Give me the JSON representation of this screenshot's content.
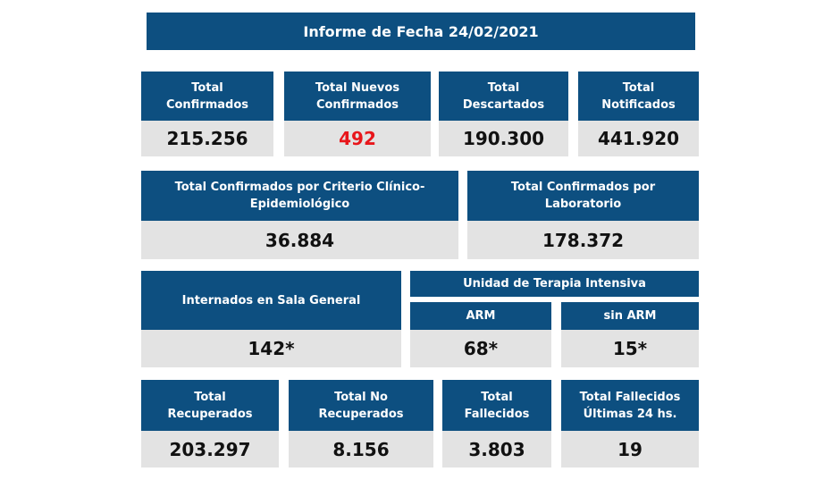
{
  "title": "Informe de Fecha 24/02/2021",
  "colors": {
    "header": "#0d4f80",
    "value_bg": "#e3e3e3",
    "highlight": "#e8161b"
  },
  "row1": [
    {
      "label": "Total Confirmados",
      "value": "215.256"
    },
    {
      "label": "Total Nuevos Confirmados",
      "value": "492"
    },
    {
      "label": "Total Descartados",
      "value": "190.300"
    },
    {
      "label": "Total Notificados",
      "value": "441.920"
    }
  ],
  "row2": [
    {
      "label": "Total Confirmados por Criterio Clínico-Epidemiológico",
      "value": "36.884"
    },
    {
      "label": "Total Confirmados por Laboratorio",
      "value": "178.372"
    }
  ],
  "row3": {
    "sala": {
      "label": "Internados en Sala General",
      "value": "142*"
    },
    "uti_label": "Unidad de Terapia Intensiva",
    "arm": {
      "label": "ARM",
      "value": "68*"
    },
    "sin_arm": {
      "label": "sin ARM",
      "value": "15*"
    }
  },
  "row4": [
    {
      "label": "Total Recuperados",
      "value": "203.297"
    },
    {
      "label": "Total No Recuperados",
      "value": "8.156"
    },
    {
      "label": "Total Fallecidos",
      "value": "3.803"
    },
    {
      "label": "Total Fallecidos Últimas 24 hs.",
      "value": "19"
    }
  ]
}
